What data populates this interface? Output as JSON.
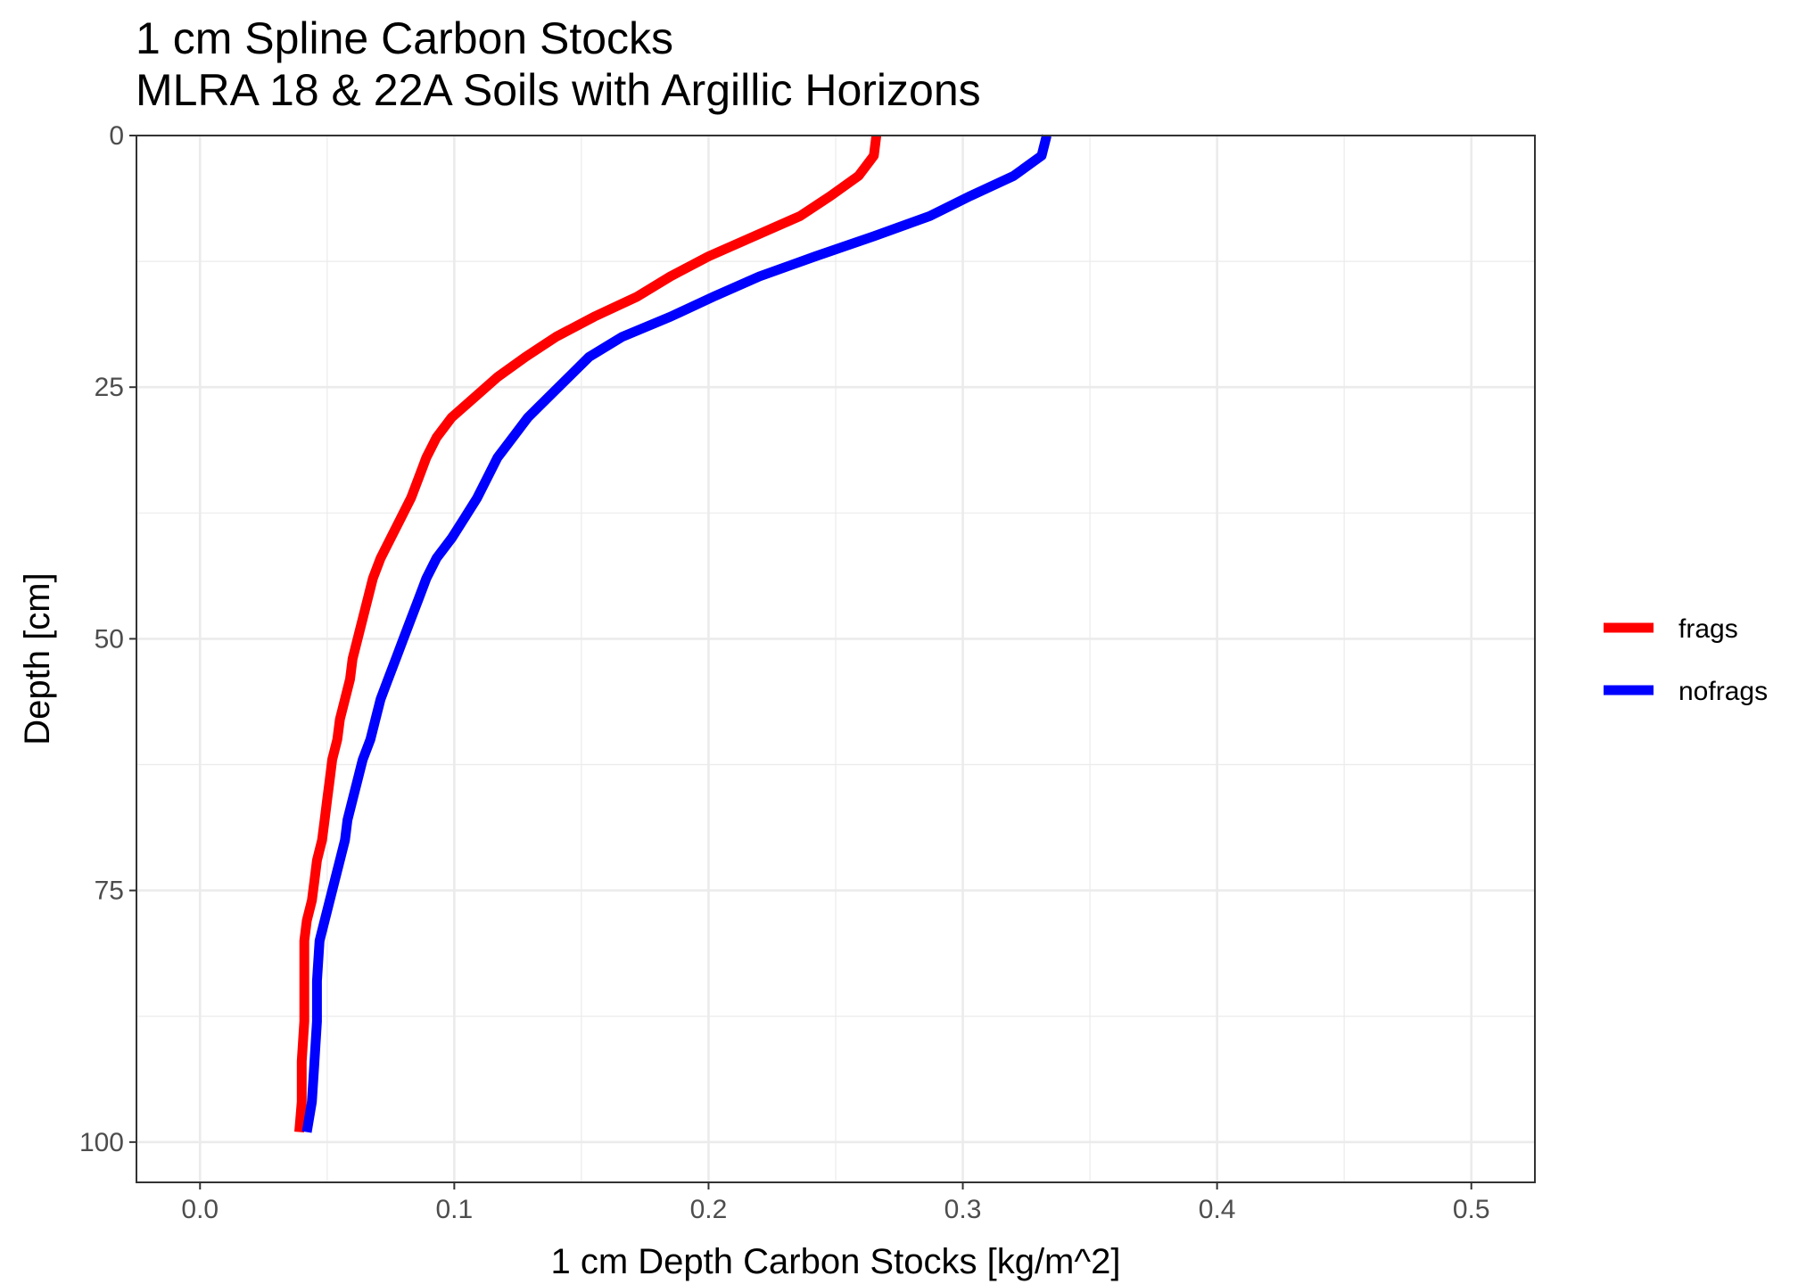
{
  "chart_data": {
    "type": "line",
    "title": "1 cm Spline Carbon Stocks",
    "subtitle": "MLRA 18 & 22A Soils with Argillic Horizons",
    "xlabel": "1 cm Depth Carbon Stocks [kg/m^2]",
    "ylabel": "Depth [cm]",
    "xlim": [
      -0.025,
      0.525
    ],
    "ylim": [
      0,
      104
    ],
    "y_reversed": true,
    "x_ticks": [
      0.0,
      0.1,
      0.2,
      0.3,
      0.4,
      0.5
    ],
    "x_tick_labels": [
      "0.0",
      "0.1",
      "0.2",
      "0.3",
      "0.4",
      "0.5"
    ],
    "y_ticks": [
      0,
      25,
      50,
      75,
      100
    ],
    "y_tick_labels": [
      "0",
      "25",
      "50",
      "75",
      "100"
    ],
    "grid": true,
    "legend_position": "right",
    "series": [
      {
        "name": "frags",
        "color": "#FF0000",
        "points": [
          [
            0.266,
            0
          ],
          [
            0.265,
            2
          ],
          [
            0.259,
            4
          ],
          [
            0.248,
            6
          ],
          [
            0.236,
            8
          ],
          [
            0.218,
            10
          ],
          [
            0.2,
            12
          ],
          [
            0.185,
            14
          ],
          [
            0.172,
            16
          ],
          [
            0.155,
            18
          ],
          [
            0.14,
            20
          ],
          [
            0.128,
            22
          ],
          [
            0.117,
            24
          ],
          [
            0.108,
            26
          ],
          [
            0.099,
            28
          ],
          [
            0.093,
            30
          ],
          [
            0.089,
            32
          ],
          [
            0.086,
            34
          ],
          [
            0.083,
            36
          ],
          [
            0.079,
            38
          ],
          [
            0.075,
            40
          ],
          [
            0.071,
            42
          ],
          [
            0.068,
            44
          ],
          [
            0.066,
            46
          ],
          [
            0.064,
            48
          ],
          [
            0.062,
            50
          ],
          [
            0.06,
            52
          ],
          [
            0.059,
            54
          ],
          [
            0.057,
            56
          ],
          [
            0.055,
            58
          ],
          [
            0.054,
            60
          ],
          [
            0.052,
            62
          ],
          [
            0.051,
            64
          ],
          [
            0.05,
            66
          ],
          [
            0.049,
            68
          ],
          [
            0.048,
            70
          ],
          [
            0.046,
            72
          ],
          [
            0.045,
            74
          ],
          [
            0.044,
            76
          ],
          [
            0.042,
            78
          ],
          [
            0.041,
            80
          ],
          [
            0.041,
            84
          ],
          [
            0.041,
            88
          ],
          [
            0.04,
            92
          ],
          [
            0.04,
            96
          ],
          [
            0.039,
            99
          ]
        ]
      },
      {
        "name": "nofrags",
        "color": "#0000FF",
        "points": [
          [
            0.333,
            0
          ],
          [
            0.331,
            2
          ],
          [
            0.32,
            4
          ],
          [
            0.303,
            6
          ],
          [
            0.287,
            8
          ],
          [
            0.265,
            10
          ],
          [
            0.242,
            12
          ],
          [
            0.22,
            14
          ],
          [
            0.202,
            16
          ],
          [
            0.185,
            18
          ],
          [
            0.166,
            20
          ],
          [
            0.153,
            22
          ],
          [
            0.145,
            24
          ],
          [
            0.137,
            26
          ],
          [
            0.129,
            28
          ],
          [
            0.123,
            30
          ],
          [
            0.117,
            32
          ],
          [
            0.113,
            34
          ],
          [
            0.109,
            36
          ],
          [
            0.104,
            38
          ],
          [
            0.099,
            40
          ],
          [
            0.093,
            42
          ],
          [
            0.089,
            44
          ],
          [
            0.086,
            46
          ],
          [
            0.083,
            48
          ],
          [
            0.08,
            50
          ],
          [
            0.077,
            52
          ],
          [
            0.074,
            54
          ],
          [
            0.071,
            56
          ],
          [
            0.069,
            58
          ],
          [
            0.067,
            60
          ],
          [
            0.064,
            62
          ],
          [
            0.062,
            64
          ],
          [
            0.06,
            66
          ],
          [
            0.058,
            68
          ],
          [
            0.057,
            70
          ],
          [
            0.055,
            72
          ],
          [
            0.053,
            74
          ],
          [
            0.051,
            76
          ],
          [
            0.049,
            78
          ],
          [
            0.047,
            80
          ],
          [
            0.046,
            84
          ],
          [
            0.046,
            88
          ],
          [
            0.045,
            92
          ],
          [
            0.044,
            96
          ],
          [
            0.042,
            99
          ]
        ]
      }
    ]
  }
}
